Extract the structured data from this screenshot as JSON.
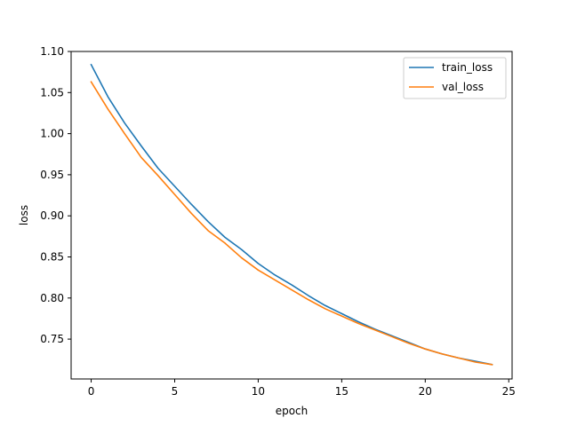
{
  "chart_data": {
    "type": "line",
    "title": "",
    "xlabel": "epoch",
    "ylabel": "loss",
    "xlim": [
      -1.2,
      25.2
    ],
    "ylim": [
      0.7015,
      1.1
    ],
    "xticks": [
      {
        "value": 0,
        "label": "0"
      },
      {
        "value": 5,
        "label": "5"
      },
      {
        "value": 10,
        "label": "10"
      },
      {
        "value": 15,
        "label": "15"
      },
      {
        "value": 20,
        "label": "20"
      },
      {
        "value": 25,
        "label": "25"
      }
    ],
    "yticks": [
      {
        "value": 0.75,
        "label": "0.75"
      },
      {
        "value": 0.8,
        "label": "0.80"
      },
      {
        "value": 0.85,
        "label": "0.85"
      },
      {
        "value": 0.9,
        "label": "0.90"
      },
      {
        "value": 0.95,
        "label": "0.95"
      },
      {
        "value": 1.0,
        "label": "1.00"
      },
      {
        "value": 1.05,
        "label": "1.05"
      },
      {
        "value": 1.1,
        "label": "1.10"
      }
    ],
    "grid": false,
    "legend_position": "upper-right",
    "x": [
      0,
      1,
      2,
      3,
      4,
      5,
      6,
      7,
      8,
      9,
      10,
      11,
      12,
      13,
      14,
      15,
      16,
      17,
      18,
      19,
      20,
      21,
      22,
      23,
      24
    ],
    "series": [
      {
        "name": "train_loss",
        "color": "#1f77b4",
        "values": [
          1.084,
          1.045,
          1.013,
          0.985,
          0.958,
          0.936,
          0.914,
          0.893,
          0.874,
          0.859,
          0.842,
          0.828,
          0.816,
          0.803,
          0.791,
          0.781,
          0.771,
          0.762,
          0.754,
          0.746,
          0.738,
          0.732,
          0.727,
          0.723,
          0.719
        ]
      },
      {
        "name": "val_loss",
        "color": "#ff7f0e",
        "values": [
          1.063,
          1.03,
          1.0,
          0.971,
          0.949,
          0.926,
          0.903,
          0.882,
          0.867,
          0.849,
          0.834,
          0.822,
          0.81,
          0.798,
          0.787,
          0.778,
          0.769,
          0.761,
          0.753,
          0.745,
          0.738,
          0.732,
          0.727,
          0.722,
          0.719
        ]
      }
    ]
  }
}
